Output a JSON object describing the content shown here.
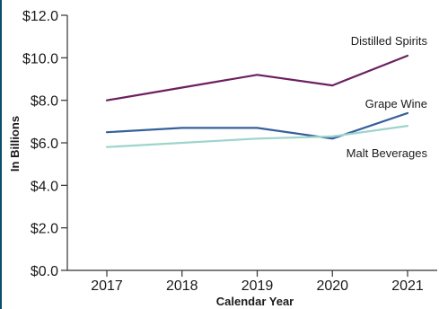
{
  "chart_data": {
    "type": "line",
    "title": "",
    "xlabel": "Calendar Year",
    "ylabel": "In Billions",
    "x": [
      "2017",
      "2018",
      "2019",
      "2020",
      "2021"
    ],
    "ylim": [
      0,
      12
    ],
    "y_ticks": [
      0,
      2,
      4,
      6,
      8,
      10,
      12
    ],
    "y_tick_labels": [
      "$0.0",
      "$2.0",
      "$4.0",
      "$6.0",
      "$8.0",
      "$10.0",
      "$12.0"
    ],
    "grid": false,
    "legend": "direct labels at line ends",
    "series": [
      {
        "name": "Distilled Spirits",
        "color": "#6b2060",
        "values": [
          8.0,
          8.6,
          9.2,
          8.7,
          10.1
        ]
      },
      {
        "name": "Grape Wine",
        "color": "#35609a",
        "values": [
          6.5,
          6.7,
          6.7,
          6.2,
          7.4
        ]
      },
      {
        "name": "Malt Beverages",
        "color": "#9dd4cc",
        "values": [
          5.8,
          6.0,
          6.2,
          6.3,
          6.8
        ]
      }
    ]
  },
  "accent_color": "#0b4f6c"
}
